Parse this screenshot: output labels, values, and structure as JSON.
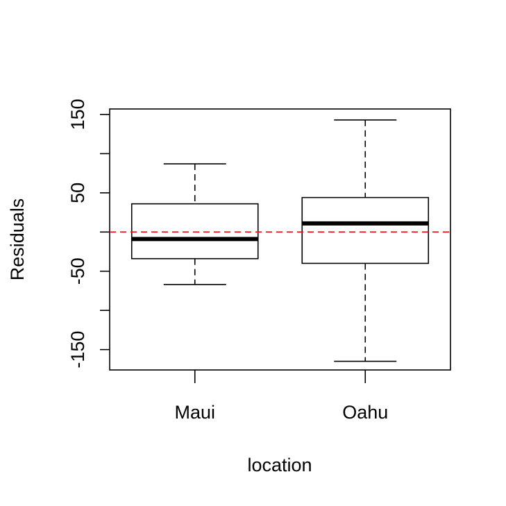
{
  "chart_data": {
    "type": "box",
    "title": "",
    "xlabel": "location",
    "ylabel": "Residuals",
    "ylim": [
      -176,
      157
    ],
    "yticks": [
      150,
      100,
      50,
      0,
      -50,
      -100,
      -150
    ],
    "yticklabels": [
      "150",
      "",
      "50",
      "",
      "-50",
      "",
      "-150"
    ],
    "categories": [
      "Maui",
      "Oahu"
    ],
    "boxes": [
      {
        "name": "Maui",
        "whisker_low": -67,
        "q1": -34,
        "median": -9,
        "q3": 36,
        "whisker_high": 87
      },
      {
        "name": "Oahu",
        "whisker_low": -165,
        "q1": -40,
        "median": 11,
        "q3": 44,
        "whisker_high": 143
      }
    ],
    "reference_line": {
      "y": 0,
      "color": "#e8141c",
      "style": "dashed"
    },
    "grid": false,
    "legend": "none"
  }
}
